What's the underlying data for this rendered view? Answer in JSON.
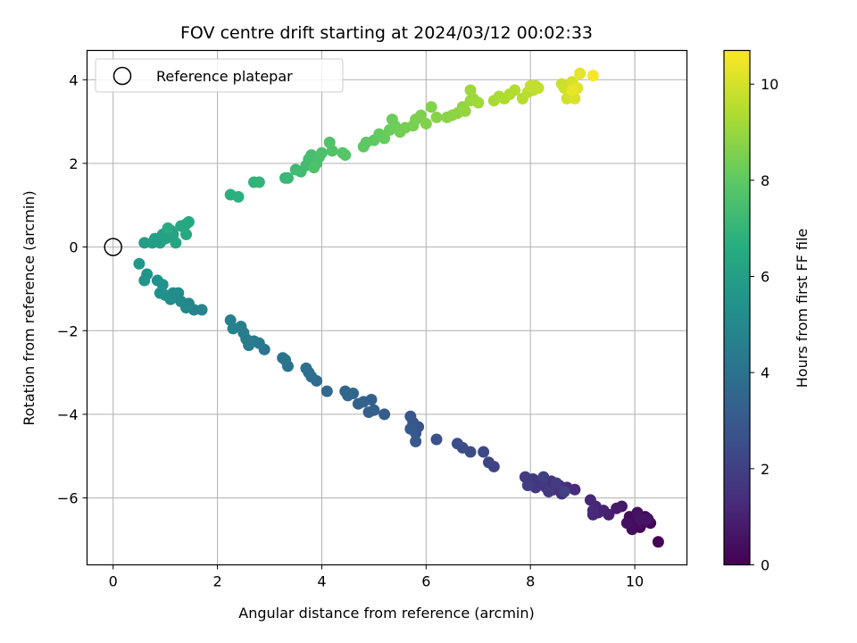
{
  "chart_data": {
    "type": "scatter",
    "title": "FOV centre drift starting at 2024/03/12 00:02:33",
    "xlabel": "Angular distance from reference (arcmin)",
    "ylabel": "Rotation from reference (arcmin)",
    "xlim": [
      -0.5,
      11.0
    ],
    "ylim": [
      -7.6,
      4.7
    ],
    "xticks": [
      0,
      2,
      4,
      6,
      8,
      10
    ],
    "yticks": [
      -6,
      -4,
      -2,
      0,
      2,
      4
    ],
    "grid": true,
    "legend": {
      "position": "upper-left",
      "entries": [
        "Reference platepar"
      ]
    },
    "reference_point": {
      "x": 0,
      "y": 0
    },
    "colorbar": {
      "label": "Hours from first FF file",
      "colormap": "viridis",
      "range": [
        0,
        10.7
      ],
      "ticks": [
        0,
        2,
        4,
        6,
        8,
        10
      ]
    },
    "points": [
      {
        "x": 10.45,
        "y": -7.05,
        "h": 0.0
      },
      {
        "x": 10.3,
        "y": -6.6,
        "h": 0.1
      },
      {
        "x": 10.2,
        "y": -6.45,
        "h": 0.15
      },
      {
        "x": 10.1,
        "y": -6.7,
        "h": 0.2
      },
      {
        "x": 10.0,
        "y": -6.55,
        "h": 0.25
      },
      {
        "x": 9.9,
        "y": -6.45,
        "h": 0.3
      },
      {
        "x": 9.95,
        "y": -6.75,
        "h": 0.35
      },
      {
        "x": 10.15,
        "y": -6.6,
        "h": 0.4
      },
      {
        "x": 10.05,
        "y": -6.35,
        "h": 0.45
      },
      {
        "x": 9.85,
        "y": -6.6,
        "h": 0.5
      },
      {
        "x": 10.25,
        "y": -6.5,
        "h": 0.55
      },
      {
        "x": 10.1,
        "y": -6.5,
        "h": 0.6
      },
      {
        "x": 9.75,
        "y": -6.2,
        "h": 0.7
      },
      {
        "x": 9.65,
        "y": -6.25,
        "h": 0.8
      },
      {
        "x": 9.5,
        "y": -6.4,
        "h": 0.9
      },
      {
        "x": 9.4,
        "y": -6.3,
        "h": 1.0
      },
      {
        "x": 9.3,
        "y": -6.35,
        "h": 1.05
      },
      {
        "x": 9.25,
        "y": -6.2,
        "h": 1.1
      },
      {
        "x": 9.2,
        "y": -6.4,
        "h": 1.15
      },
      {
        "x": 9.15,
        "y": -6.05,
        "h": 1.2
      },
      {
        "x": 9.2,
        "y": -6.3,
        "h": 1.25
      },
      {
        "x": 8.85,
        "y": -5.8,
        "h": 1.3
      },
      {
        "x": 8.7,
        "y": -5.75,
        "h": 1.35
      },
      {
        "x": 8.6,
        "y": -5.9,
        "h": 1.4
      },
      {
        "x": 8.55,
        "y": -5.7,
        "h": 1.45
      },
      {
        "x": 8.45,
        "y": -5.8,
        "h": 1.5
      },
      {
        "x": 8.4,
        "y": -5.6,
        "h": 1.55
      },
      {
        "x": 8.3,
        "y": -5.75,
        "h": 1.6
      },
      {
        "x": 8.2,
        "y": -5.6,
        "h": 1.65
      },
      {
        "x": 8.1,
        "y": -5.75,
        "h": 1.7
      },
      {
        "x": 8.05,
        "y": -5.55,
        "h": 1.75
      },
      {
        "x": 8.35,
        "y": -5.85,
        "h": 1.8
      },
      {
        "x": 8.5,
        "y": -5.65,
        "h": 1.85
      },
      {
        "x": 7.9,
        "y": -5.5,
        "h": 1.9
      },
      {
        "x": 7.95,
        "y": -5.7,
        "h": 1.95
      },
      {
        "x": 8.25,
        "y": -5.5,
        "h": 2.0
      },
      {
        "x": 8.65,
        "y": -5.85,
        "h": 2.05
      },
      {
        "x": 7.3,
        "y": -5.25,
        "h": 2.15
      },
      {
        "x": 7.2,
        "y": -5.15,
        "h": 2.25
      },
      {
        "x": 7.1,
        "y": -4.9,
        "h": 2.35
      },
      {
        "x": 6.85,
        "y": -4.9,
        "h": 2.45
      },
      {
        "x": 6.7,
        "y": -4.8,
        "h": 2.5
      },
      {
        "x": 6.6,
        "y": -4.7,
        "h": 2.55
      },
      {
        "x": 6.2,
        "y": -4.6,
        "h": 2.65
      },
      {
        "x": 5.85,
        "y": -4.3,
        "h": 2.75
      },
      {
        "x": 5.8,
        "y": -4.45,
        "h": 2.8
      },
      {
        "x": 5.75,
        "y": -4.2,
        "h": 2.85
      },
      {
        "x": 5.7,
        "y": -4.05,
        "h": 2.9
      },
      {
        "x": 5.8,
        "y": -4.65,
        "h": 2.95
      },
      {
        "x": 5.7,
        "y": -4.35,
        "h": 3.0
      },
      {
        "x": 5.2,
        "y": -4.0,
        "h": 3.1
      },
      {
        "x": 5.0,
        "y": -3.9,
        "h": 3.2
      },
      {
        "x": 4.9,
        "y": -3.95,
        "h": 3.25
      },
      {
        "x": 4.95,
        "y": -3.65,
        "h": 3.3
      },
      {
        "x": 4.8,
        "y": -3.7,
        "h": 3.35
      },
      {
        "x": 4.7,
        "y": -3.75,
        "h": 3.4
      },
      {
        "x": 4.6,
        "y": -3.5,
        "h": 3.45
      },
      {
        "x": 4.5,
        "y": -3.55,
        "h": 3.5
      },
      {
        "x": 4.45,
        "y": -3.45,
        "h": 3.55
      },
      {
        "x": 4.1,
        "y": -3.45,
        "h": 3.65
      },
      {
        "x": 3.9,
        "y": -3.2,
        "h": 3.75
      },
      {
        "x": 3.75,
        "y": -3.0,
        "h": 3.8
      },
      {
        "x": 3.8,
        "y": -3.1,
        "h": 3.85
      },
      {
        "x": 3.7,
        "y": -2.9,
        "h": 3.9
      },
      {
        "x": 3.35,
        "y": -2.85,
        "h": 4.0
      },
      {
        "x": 3.3,
        "y": -2.7,
        "h": 4.05
      },
      {
        "x": 3.25,
        "y": -2.65,
        "h": 4.1
      },
      {
        "x": 2.9,
        "y": -2.45,
        "h": 4.2
      },
      {
        "x": 2.8,
        "y": -2.3,
        "h": 4.3
      },
      {
        "x": 2.7,
        "y": -2.25,
        "h": 4.35
      },
      {
        "x": 2.6,
        "y": -2.35,
        "h": 4.4
      },
      {
        "x": 2.55,
        "y": -2.2,
        "h": 4.45
      },
      {
        "x": 2.5,
        "y": -2.05,
        "h": 4.5
      },
      {
        "x": 2.45,
        "y": -1.9,
        "h": 4.55
      },
      {
        "x": 2.3,
        "y": -1.95,
        "h": 4.6
      },
      {
        "x": 2.25,
        "y": -1.75,
        "h": 4.65
      },
      {
        "x": 1.7,
        "y": -1.5,
        "h": 4.8
      },
      {
        "x": 1.55,
        "y": -1.5,
        "h": 4.85
      },
      {
        "x": 1.45,
        "y": -1.35,
        "h": 4.9
      },
      {
        "x": 1.4,
        "y": -1.45,
        "h": 4.95
      },
      {
        "x": 1.3,
        "y": -1.3,
        "h": 5.0
      },
      {
        "x": 1.2,
        "y": -1.2,
        "h": 5.05
      },
      {
        "x": 1.25,
        "y": -1.1,
        "h": 5.1
      },
      {
        "x": 1.1,
        "y": -1.25,
        "h": 5.15
      },
      {
        "x": 1.15,
        "y": -1.1,
        "h": 5.2
      },
      {
        "x": 1.0,
        "y": -1.15,
        "h": 5.25
      },
      {
        "x": 0.9,
        "y": -1.1,
        "h": 5.3
      },
      {
        "x": 0.85,
        "y": -0.8,
        "h": 5.35
      },
      {
        "x": 0.95,
        "y": -0.9,
        "h": 5.4
      },
      {
        "x": 0.65,
        "y": -0.65,
        "h": 5.5
      },
      {
        "x": 0.6,
        "y": -0.8,
        "h": 5.55
      },
      {
        "x": 0.5,
        "y": -0.4,
        "h": 5.6
      },
      {
        "x": 0.6,
        "y": 0.1,
        "h": 5.85
      },
      {
        "x": 0.75,
        "y": 0.1,
        "h": 5.9
      },
      {
        "x": 0.8,
        "y": 0.2,
        "h": 5.95
      },
      {
        "x": 0.9,
        "y": 0.1,
        "h": 6.0
      },
      {
        "x": 0.95,
        "y": 0.3,
        "h": 6.05
      },
      {
        "x": 1.0,
        "y": 0.2,
        "h": 6.1
      },
      {
        "x": 1.1,
        "y": 0.4,
        "h": 6.15
      },
      {
        "x": 1.15,
        "y": 0.3,
        "h": 6.2
      },
      {
        "x": 1.2,
        "y": 0.1,
        "h": 6.25
      },
      {
        "x": 1.3,
        "y": 0.5,
        "h": 6.3
      },
      {
        "x": 1.4,
        "y": 0.55,
        "h": 6.35
      },
      {
        "x": 1.45,
        "y": 0.6,
        "h": 6.4
      },
      {
        "x": 1.4,
        "y": 0.3,
        "h": 6.45
      },
      {
        "x": 1.05,
        "y": 0.45,
        "h": 6.5
      },
      {
        "x": 2.25,
        "y": 1.25,
        "h": 6.75
      },
      {
        "x": 2.4,
        "y": 1.2,
        "h": 6.8
      },
      {
        "x": 2.7,
        "y": 1.55,
        "h": 6.9
      },
      {
        "x": 2.8,
        "y": 1.55,
        "h": 6.95
      },
      {
        "x": 3.3,
        "y": 1.65,
        "h": 7.1
      },
      {
        "x": 3.35,
        "y": 1.65,
        "h": 7.15
      },
      {
        "x": 3.5,
        "y": 1.85,
        "h": 7.25
      },
      {
        "x": 3.6,
        "y": 1.8,
        "h": 7.3
      },
      {
        "x": 3.7,
        "y": 1.95,
        "h": 7.35
      },
      {
        "x": 3.75,
        "y": 2.1,
        "h": 7.4
      },
      {
        "x": 3.8,
        "y": 2.2,
        "h": 7.45
      },
      {
        "x": 3.9,
        "y": 2.0,
        "h": 7.5
      },
      {
        "x": 3.95,
        "y": 2.15,
        "h": 7.55
      },
      {
        "x": 4.0,
        "y": 2.25,
        "h": 7.6
      },
      {
        "x": 3.85,
        "y": 1.9,
        "h": 7.62
      },
      {
        "x": 4.15,
        "y": 2.5,
        "h": 7.7
      },
      {
        "x": 4.2,
        "y": 2.3,
        "h": 7.75
      },
      {
        "x": 4.4,
        "y": 2.25,
        "h": 7.8
      },
      {
        "x": 4.45,
        "y": 2.2,
        "h": 7.85
      },
      {
        "x": 4.8,
        "y": 2.4,
        "h": 7.95
      },
      {
        "x": 4.85,
        "y": 2.5,
        "h": 8.0
      },
      {
        "x": 5.0,
        "y": 2.55,
        "h": 8.05
      },
      {
        "x": 5.1,
        "y": 2.7,
        "h": 8.1
      },
      {
        "x": 5.2,
        "y": 2.6,
        "h": 8.15
      },
      {
        "x": 5.3,
        "y": 2.8,
        "h": 8.2
      },
      {
        "x": 5.35,
        "y": 3.05,
        "h": 8.25
      },
      {
        "x": 5.4,
        "y": 2.9,
        "h": 8.3
      },
      {
        "x": 5.5,
        "y": 2.75,
        "h": 8.35
      },
      {
        "x": 5.6,
        "y": 2.85,
        "h": 8.4
      },
      {
        "x": 5.75,
        "y": 2.9,
        "h": 8.45
      },
      {
        "x": 5.8,
        "y": 3.05,
        "h": 8.5
      },
      {
        "x": 5.9,
        "y": 3.15,
        "h": 8.55
      },
      {
        "x": 6.0,
        "y": 2.95,
        "h": 8.6
      },
      {
        "x": 6.1,
        "y": 3.35,
        "h": 8.65
      },
      {
        "x": 6.2,
        "y": 3.1,
        "h": 8.7
      },
      {
        "x": 6.4,
        "y": 3.1,
        "h": 8.75
      },
      {
        "x": 6.5,
        "y": 3.15,
        "h": 8.8
      },
      {
        "x": 6.6,
        "y": 3.2,
        "h": 8.85
      },
      {
        "x": 6.7,
        "y": 3.35,
        "h": 8.9
      },
      {
        "x": 6.75,
        "y": 3.25,
        "h": 8.95
      },
      {
        "x": 6.85,
        "y": 3.5,
        "h": 9.0
      },
      {
        "x": 6.9,
        "y": 3.55,
        "h": 9.05
      },
      {
        "x": 6.85,
        "y": 3.75,
        "h": 9.1
      },
      {
        "x": 7.0,
        "y": 3.45,
        "h": 9.15
      },
      {
        "x": 7.3,
        "y": 3.5,
        "h": 9.25
      },
      {
        "x": 7.4,
        "y": 3.6,
        "h": 9.3
      },
      {
        "x": 7.5,
        "y": 3.55,
        "h": 9.35
      },
      {
        "x": 7.6,
        "y": 3.65,
        "h": 9.4
      },
      {
        "x": 7.7,
        "y": 3.75,
        "h": 9.45
      },
      {
        "x": 7.85,
        "y": 3.55,
        "h": 9.5
      },
      {
        "x": 7.95,
        "y": 3.7,
        "h": 9.55
      },
      {
        "x": 8.05,
        "y": 3.75,
        "h": 9.6
      },
      {
        "x": 8.1,
        "y": 3.85,
        "h": 9.65
      },
      {
        "x": 8.15,
        "y": 3.8,
        "h": 9.7
      },
      {
        "x": 8.0,
        "y": 3.85,
        "h": 9.75
      },
      {
        "x": 8.6,
        "y": 3.9,
        "h": 9.85
      },
      {
        "x": 8.65,
        "y": 3.8,
        "h": 9.9
      },
      {
        "x": 8.7,
        "y": 3.55,
        "h": 9.95
      },
      {
        "x": 8.75,
        "y": 3.7,
        "h": 10.0
      },
      {
        "x": 8.8,
        "y": 3.95,
        "h": 10.05
      },
      {
        "x": 8.85,
        "y": 3.55,
        "h": 10.1
      },
      {
        "x": 8.9,
        "y": 3.8,
        "h": 10.2
      },
      {
        "x": 8.95,
        "y": 4.15,
        "h": 10.3
      },
      {
        "x": 8.8,
        "y": 3.75,
        "h": 10.35
      },
      {
        "x": 9.2,
        "y": 4.1,
        "h": 10.6
      }
    ]
  }
}
